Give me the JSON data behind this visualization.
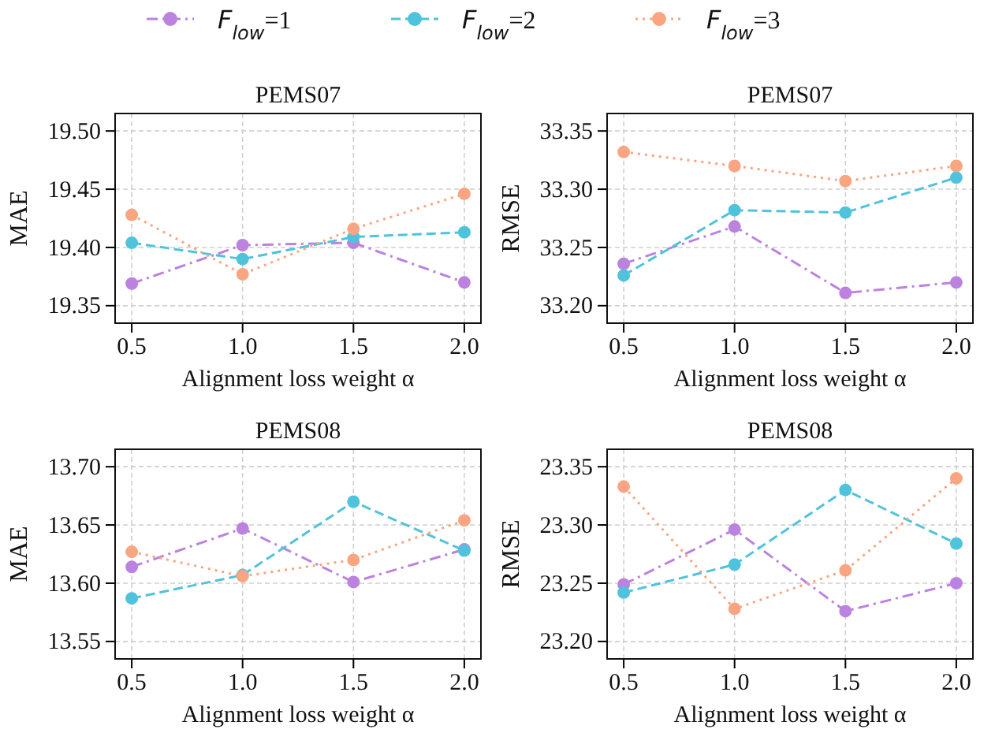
{
  "chart_data": [
    {
      "type": "line",
      "title": "PEMS07",
      "xlabel": "Alignment loss weight α",
      "ylabel": "MAE",
      "x": [
        0.5,
        1.0,
        1.5,
        2.0
      ],
      "xlim": [
        0.425,
        2.075
      ],
      "xticks": [
        {
          "value": 0.5,
          "label": "0.5"
        },
        {
          "value": 1,
          "label": "1.0"
        },
        {
          "value": 1.5,
          "label": "1.5"
        },
        {
          "value": 2,
          "label": "2.0"
        }
      ],
      "ylim": [
        19.335,
        19.515
      ],
      "yticks": [
        {
          "value": 19.35,
          "label": "19.35"
        },
        {
          "value": 19.4,
          "label": "19.40"
        },
        {
          "value": 19.45,
          "label": "19.45"
        },
        {
          "value": 19.5,
          "label": "19.50"
        }
      ],
      "grid": true,
      "marker": "circle",
      "legend": "top",
      "series": [
        {
          "name": "F$_{low}$=1",
          "color": "#bc82e0",
          "line_style": "dashdot",
          "values": [
            19.369,
            19.402,
            19.404,
            19.37
          ]
        },
        {
          "name": "F$_{low}$=2",
          "color": "#4fc3dc",
          "line_style": "dashed",
          "values": [
            19.404,
            19.39,
            19.409,
            19.413
          ]
        },
        {
          "name": "F$_{low}$=3",
          "color": "#f9a582",
          "line_style": "dotted",
          "values": [
            19.428,
            19.377,
            19.416,
            19.446
          ]
        }
      ]
    },
    {
      "type": "line",
      "title": "PEMS07",
      "xlabel": "Alignment loss weight α",
      "ylabel": "RMSE",
      "x": [
        0.5,
        1.0,
        1.5,
        2.0
      ],
      "xlim": [
        0.425,
        2.075
      ],
      "xticks": [
        {
          "value": 0.5,
          "label": "0.5"
        },
        {
          "value": 1,
          "label": "1.0"
        },
        {
          "value": 1.5,
          "label": "1.5"
        },
        {
          "value": 2,
          "label": "2.0"
        }
      ],
      "ylim": [
        33.185,
        33.365
      ],
      "yticks": [
        {
          "value": 33.2,
          "label": "33.20"
        },
        {
          "value": 33.25,
          "label": "33.25"
        },
        {
          "value": 33.3,
          "label": "33.30"
        },
        {
          "value": 33.35,
          "label": "33.35"
        }
      ],
      "grid": true,
      "marker": "circle",
      "series": [
        {
          "color": "#bc82e0",
          "line_style": "dashdot",
          "values": [
            33.236,
            33.268,
            33.211,
            33.22
          ]
        },
        {
          "color": "#4fc3dc",
          "line_style": "dashed",
          "values": [
            33.226,
            33.282,
            33.28,
            33.31
          ]
        },
        {
          "color": "#f9a582",
          "line_style": "dotted",
          "values": [
            33.332,
            33.32,
            33.307,
            33.32
          ]
        }
      ]
    },
    {
      "type": "line",
      "title": "PEMS08",
      "xlabel": "Alignment loss weight α",
      "ylabel": "MAE",
      "x": [
        0.5,
        1.0,
        1.5,
        2.0
      ],
      "xlim": [
        0.425,
        2.075
      ],
      "xticks": [
        {
          "value": 0.5,
          "label": "0.5"
        },
        {
          "value": 1,
          "label": "1.0"
        },
        {
          "value": 1.5,
          "label": "1.5"
        },
        {
          "value": 2,
          "label": "2.0"
        }
      ],
      "ylim": [
        13.535,
        13.715
      ],
      "yticks": [
        {
          "value": 13.55,
          "label": "13.55"
        },
        {
          "value": 13.6,
          "label": "13.60"
        },
        {
          "value": 13.65,
          "label": "13.65"
        },
        {
          "value": 13.7,
          "label": "13.70"
        }
      ],
      "grid": true,
      "marker": "circle",
      "series": [
        {
          "color": "#bc82e0",
          "line_style": "dashdot",
          "values": [
            13.614,
            13.647,
            13.601,
            13.629
          ]
        },
        {
          "color": "#4fc3dc",
          "line_style": "dashed",
          "values": [
            13.587,
            13.607,
            13.67,
            13.628
          ]
        },
        {
          "color": "#f9a582",
          "line_style": "dotted",
          "values": [
            13.627,
            13.606,
            13.62,
            13.654
          ]
        }
      ]
    },
    {
      "type": "line",
      "title": "PEMS08",
      "xlabel": "Alignment loss weight α",
      "ylabel": "RMSE",
      "x": [
        0.5,
        1.0,
        1.5,
        2.0
      ],
      "xlim": [
        0.425,
        2.075
      ],
      "xticks": [
        {
          "value": 0.5,
          "label": "0.5"
        },
        {
          "value": 1,
          "label": "1.0"
        },
        {
          "value": 1.5,
          "label": "1.5"
        },
        {
          "value": 2,
          "label": "2.0"
        }
      ],
      "ylim": [
        23.185,
        23.365
      ],
      "yticks": [
        {
          "value": 23.2,
          "label": "23.20"
        },
        {
          "value": 23.25,
          "label": "23.25"
        },
        {
          "value": 23.3,
          "label": "23.30"
        },
        {
          "value": 23.35,
          "label": "23.35"
        }
      ],
      "grid": true,
      "marker": "circle",
      "series": [
        {
          "color": "#bc82e0",
          "line_style": "dashdot",
          "values": [
            23.249,
            23.296,
            23.226,
            23.25
          ]
        },
        {
          "color": "#4fc3dc",
          "line_style": "dashed",
          "values": [
            23.242,
            23.266,
            23.33,
            23.284
          ]
        },
        {
          "color": "#f9a582",
          "line_style": "dotted",
          "values": [
            23.333,
            23.228,
            23.261,
            23.34
          ]
        }
      ]
    }
  ]
}
